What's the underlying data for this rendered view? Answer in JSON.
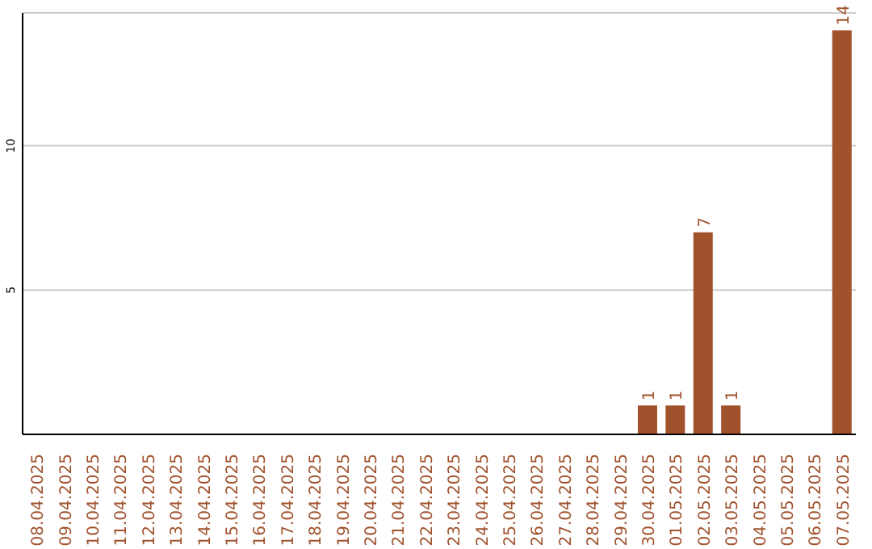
{
  "chart_data": {
    "type": "bar",
    "categories": [
      "08.04.2025",
      "09.04.2025",
      "10.04.2025",
      "11.04.2025",
      "12.04.2025",
      "13.04.2025",
      "14.04.2025",
      "15.04.2025",
      "16.04.2025",
      "17.04.2025",
      "18.04.2025",
      "19.04.2025",
      "20.04.2025",
      "21.04.2025",
      "22.04.2025",
      "23.04.2025",
      "24.04.2025",
      "25.04.2025",
      "26.04.2025",
      "27.04.2025",
      "28.04.2025",
      "29.04.2025",
      "30.04.2025",
      "01.05.2025",
      "02.05.2025",
      "03.05.2025",
      "04.05.2025",
      "05.05.2025",
      "06.05.2025",
      "07.05.2025"
    ],
    "values": [
      0,
      0,
      0,
      0,
      0,
      0,
      0,
      0,
      0,
      0,
      0,
      0,
      0,
      0,
      0,
      0,
      0,
      0,
      0,
      0,
      0,
      0,
      1,
      1,
      7,
      1,
      0,
      0,
      0,
      14
    ],
    "value_labels": [
      null,
      null,
      null,
      null,
      null,
      null,
      null,
      null,
      null,
      null,
      null,
      null,
      null,
      null,
      null,
      null,
      null,
      null,
      null,
      null,
      null,
      null,
      "1",
      "1",
      "7",
      "1",
      null,
      null,
      null,
      "14"
    ],
    "color": "#a0522d",
    "ylim": [
      0,
      14.6
    ],
    "yticks": [
      5,
      10
    ],
    "grid": "y"
  }
}
